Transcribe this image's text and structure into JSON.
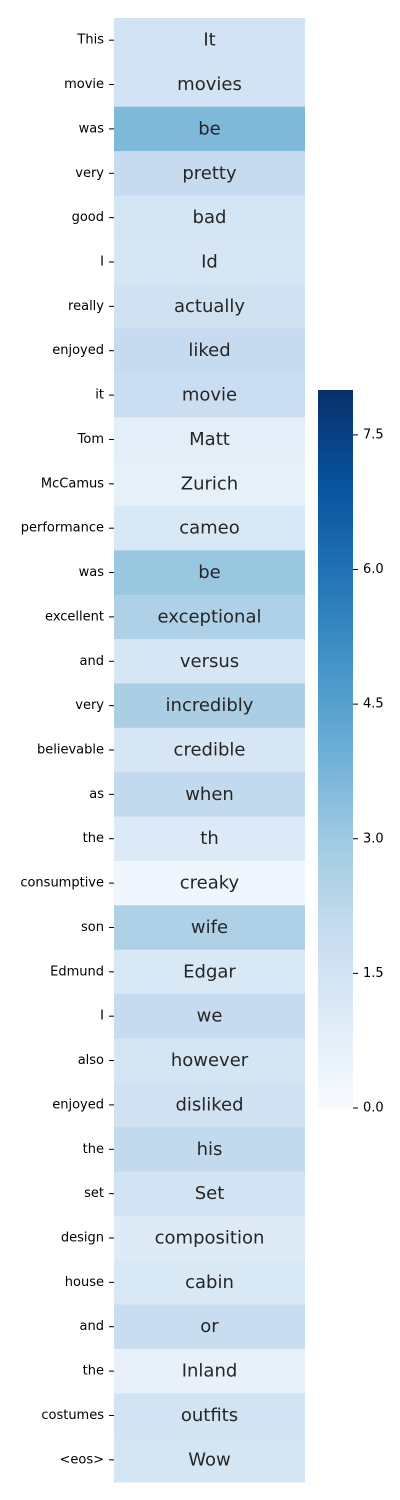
{
  "chart_data": {
    "type": "heatmap",
    "rows": [
      "This",
      "movie",
      "was",
      "very",
      "good",
      "I",
      "really",
      "enjoyed",
      "it",
      "Tom",
      "McCamus",
      "performance",
      "was",
      "excellent",
      "and",
      "very",
      "believable",
      "as",
      "the",
      "consumptive",
      "son",
      "Edmund",
      "I",
      "also",
      "enjoyed",
      "the",
      "set",
      "design",
      "house",
      "and",
      "the",
      "costumes",
      "<eos>"
    ],
    "cell_labels": [
      "It",
      "movies",
      "be",
      "pretty",
      "bad",
      "Id",
      "actually",
      "liked",
      "movie",
      "Matt",
      "Zurich",
      "cameo",
      "be",
      "exceptional",
      "versus",
      "incredibly",
      "credible",
      "when",
      "th",
      "creaky",
      "wife",
      "Edgar",
      "we",
      "however",
      "disliked",
      "his",
      "Set",
      "composition",
      "cabin",
      "or",
      "Inland",
      "outfits",
      "Wow"
    ],
    "values": [
      1.5,
      1.5,
      3.6,
      2.0,
      1.4,
      1.3,
      1.6,
      2.0,
      1.8,
      0.8,
      0.7,
      1.2,
      3.1,
      2.6,
      1.3,
      2.7,
      1.3,
      2.1,
      1.1,
      0.3,
      2.6,
      1.2,
      2.0,
      1.4,
      1.6,
      2.1,
      1.5,
      1.0,
      1.2,
      1.9,
      0.6,
      1.5,
      1.4
    ],
    "colorbar": {
      "ticks": [
        0.0,
        1.5,
        3.0,
        4.5,
        6.0,
        7.5
      ],
      "tick_labels": [
        "0.0",
        "1.5",
        "3.0",
        "4.5",
        "6.0",
        "7.5"
      ],
      "vmin": 0,
      "vmax": 8,
      "colormap": "Blues"
    },
    "title": "",
    "xlabel": "",
    "ylabel": ""
  }
}
